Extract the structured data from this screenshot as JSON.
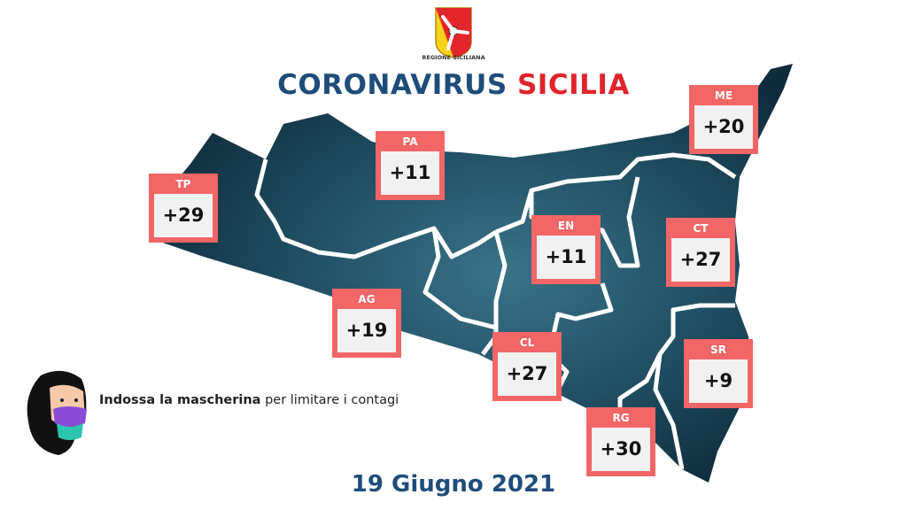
{
  "header": {
    "logo_text": "REGIONE SICILIANA",
    "title_part1": "CORONAVIRUS",
    "title_part2": "SICILIA"
  },
  "colors": {
    "title_blue": "#1f4d7a",
    "title_red": "#e0242b",
    "box_red": "#f26666",
    "map": "#1d4a5e"
  },
  "provinces": [
    {
      "code": "TP",
      "value": "+29"
    },
    {
      "code": "PA",
      "value": "+11"
    },
    {
      "code": "ME",
      "value": "+20"
    },
    {
      "code": "EN",
      "value": "+11"
    },
    {
      "code": "CT",
      "value": "+27"
    },
    {
      "code": "AG",
      "value": "+19"
    },
    {
      "code": "CL",
      "value": "+27"
    },
    {
      "code": "SR",
      "value": "+9"
    },
    {
      "code": "RG",
      "value": "+30"
    }
  ],
  "message": {
    "bold": "Indossa la mascherina",
    "rest": "per limitare i contagi"
  },
  "date": "19 Giugno 2021",
  "icons": {
    "logo": "trinacria-coat-of-arms",
    "illustration": "woman-wearing-mask"
  }
}
